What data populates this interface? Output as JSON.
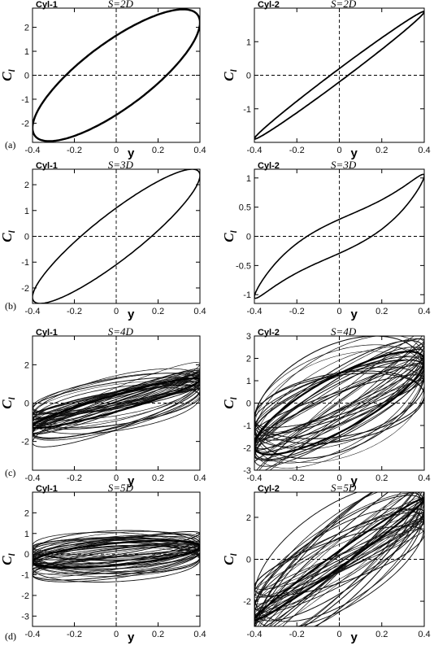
{
  "chart_data": [
    {
      "type": "line",
      "panel": "(a)",
      "cylinder": "Cyl-1",
      "spacing": "S=2D",
      "xlabel": "y",
      "ylabel": "C",
      "ylabel_sub": "l",
      "xlim": [
        -0.4,
        0.4
      ],
      "ylim": [
        -2.8,
        2.8
      ],
      "xticks": [
        -0.4,
        -0.2,
        0,
        0.2,
        0.4
      ],
      "yticks": [
        -2,
        -1,
        0,
        1,
        2
      ],
      "xtick_labels": [
        "-0.4",
        "-0.2",
        "0",
        "0.2",
        "0.4"
      ],
      "ytick_labels": [
        "-2",
        "-1",
        "0",
        "1",
        "2"
      ],
      "loop": {
        "amp_x": 0.4,
        "amp_y": 2.75,
        "phase_deg": 37,
        "stroke": 2.4
      },
      "chaotic": false
    },
    {
      "type": "line",
      "panel": "",
      "cylinder": "Cyl-2",
      "spacing": "S=2D",
      "xlabel": "y",
      "ylabel": "C",
      "ylabel_sub": "l",
      "xlim": [
        -0.4,
        0.4
      ],
      "ylim": [
        -2,
        2
      ],
      "xticks": [
        -0.4,
        -0.2,
        0,
        0.2,
        0.4
      ],
      "yticks": [
        -1,
        0,
        1
      ],
      "xtick_labels": [
        "-0.4",
        "-0.2",
        "0",
        "0.2",
        "0.4"
      ],
      "ytick_labels": [
        "-1",
        "0",
        "1"
      ],
      "loop": {
        "amp_x": 0.4,
        "amp_y": 1.9,
        "phase_deg": 6,
        "stroke": 1.8
      },
      "chaotic": false
    },
    {
      "type": "line",
      "panel": "(b)",
      "cylinder": "Cyl-1",
      "spacing": "S=3D",
      "xlabel": "y",
      "ylabel": "C",
      "ylabel_sub": "l",
      "xlim": [
        -0.4,
        0.4
      ],
      "ylim": [
        -2.6,
        2.6
      ],
      "xticks": [
        -0.4,
        -0.2,
        0,
        0.2,
        0.4
      ],
      "yticks": [
        -2,
        -1,
        0,
        1,
        2
      ],
      "xtick_labels": [
        "-0.4",
        "-0.2",
        "0",
        "0.2",
        "0.4"
      ],
      "ytick_labels": [
        "-2",
        "-1",
        "0",
        "1",
        "2"
      ],
      "loop": {
        "amp_x": 0.4,
        "amp_y": 2.6,
        "phase_deg": 25,
        "stroke": 1.6
      },
      "chaotic": false
    },
    {
      "type": "line",
      "panel": "",
      "cylinder": "Cyl-2",
      "spacing": "S=3D",
      "xlabel": "y",
      "ylabel": "C",
      "ylabel_sub": "l",
      "xlim": [
        -0.4,
        0.4
      ],
      "ylim": [
        -1.15,
        1.15
      ],
      "xticks": [
        -0.4,
        -0.2,
        0,
        0.2,
        0.4
      ],
      "yticks": [
        -1,
        -0.5,
        0,
        0.5,
        1
      ],
      "xtick_labels": [
        "-0.4",
        "-0.2",
        "0",
        "0.2",
        "0.4"
      ],
      "ytick_labels": [
        "-1",
        "-0.5",
        "0",
        "0.5",
        "1"
      ],
      "loop": {
        "amp_x": 0.4,
        "amp_y": 1.1,
        "phase_deg": 24,
        "cubic": 0.35,
        "stroke": 1.6
      },
      "chaotic": false
    },
    {
      "type": "line",
      "panel": "(c)",
      "cylinder": "Cyl-1",
      "spacing": "S=4D",
      "xlabel": "y",
      "ylabel": "C",
      "ylabel_sub": "l",
      "xlim": [
        -0.4,
        0.4
      ],
      "ylim": [
        -3.5,
        3.5
      ],
      "xticks": [
        -0.4,
        -0.2,
        0,
        0.2,
        0.4
      ],
      "yticks": [
        -2,
        0,
        2
      ],
      "xtick_labels": [
        "-0.4",
        "-0.2",
        "0",
        "0.2",
        "0.4"
      ],
      "ytick_labels": [
        "-2",
        "0",
        "2"
      ],
      "loop": {
        "amp_x": 0.4,
        "amp_y": 1.3,
        "phase_deg": 20,
        "stroke": 0.8
      },
      "chaotic": true
    },
    {
      "type": "line",
      "panel": "",
      "cylinder": "Cyl-2",
      "spacing": "S=4D",
      "xlabel": "y",
      "ylabel": "C",
      "ylabel_sub": "l",
      "xlim": [
        -0.4,
        0.4
      ],
      "ylim": [
        -3,
        3
      ],
      "xticks": [
        -0.4,
        -0.2,
        0,
        0.2,
        0.4
      ],
      "yticks": [
        -3,
        -2,
        -1,
        0,
        1,
        2,
        3
      ],
      "xtick_labels": [
        "-0.4",
        "-0.2",
        "0",
        "0.2",
        "0.4"
      ],
      "ytick_labels": [
        "-3",
        "-2",
        "-1",
        "0",
        "1",
        "2",
        "3"
      ],
      "loop": {
        "amp_x": 0.4,
        "amp_y": 2.3,
        "phase_deg": 35,
        "stroke": 0.8
      },
      "chaotic": true
    },
    {
      "type": "line",
      "panel": "(d)",
      "cylinder": "Cyl-1",
      "spacing": "S=5D",
      "xlabel": "y",
      "ylabel": "C",
      "ylabel_sub": "l",
      "xlim": [
        -0.4,
        0.4
      ],
      "ylim": [
        -3.5,
        3
      ],
      "xticks": [
        -0.4,
        -0.2,
        0,
        0.2,
        0.4
      ],
      "yticks": [
        -3,
        -2,
        -1,
        0,
        1,
        2
      ],
      "xtick_labels": [
        "-0.4",
        "-0.2",
        "0",
        "0.2",
        "0.4"
      ],
      "ytick_labels": [
        "-3",
        "-2",
        "-1",
        "0",
        "1",
        "2"
      ],
      "loop": {
        "amp_x": 0.4,
        "amp_y": 0.65,
        "phase_deg": 55,
        "stroke": 0.8
      },
      "chaotic": true
    },
    {
      "type": "line",
      "panel": "",
      "cylinder": "Cyl-2",
      "spacing": "S=5D",
      "xlabel": "y",
      "ylabel": "C",
      "ylabel_sub": "l",
      "xlim": [
        -0.4,
        0.4
      ],
      "ylim": [
        -3.2,
        3.2
      ],
      "xticks": [
        -0.4,
        -0.2,
        0,
        0.2,
        0.4
      ],
      "yticks": [
        -2,
        0,
        2
      ],
      "xtick_labels": [
        "-0.4",
        "-0.2",
        "0",
        "0.2",
        "0.4"
      ],
      "ytick_labels": [
        "-2",
        "0",
        "2"
      ],
      "loop": {
        "amp_x": 0.4,
        "amp_y": 2.9,
        "phase_deg": 8,
        "stroke": 0.8
      },
      "chaotic": true
    }
  ]
}
